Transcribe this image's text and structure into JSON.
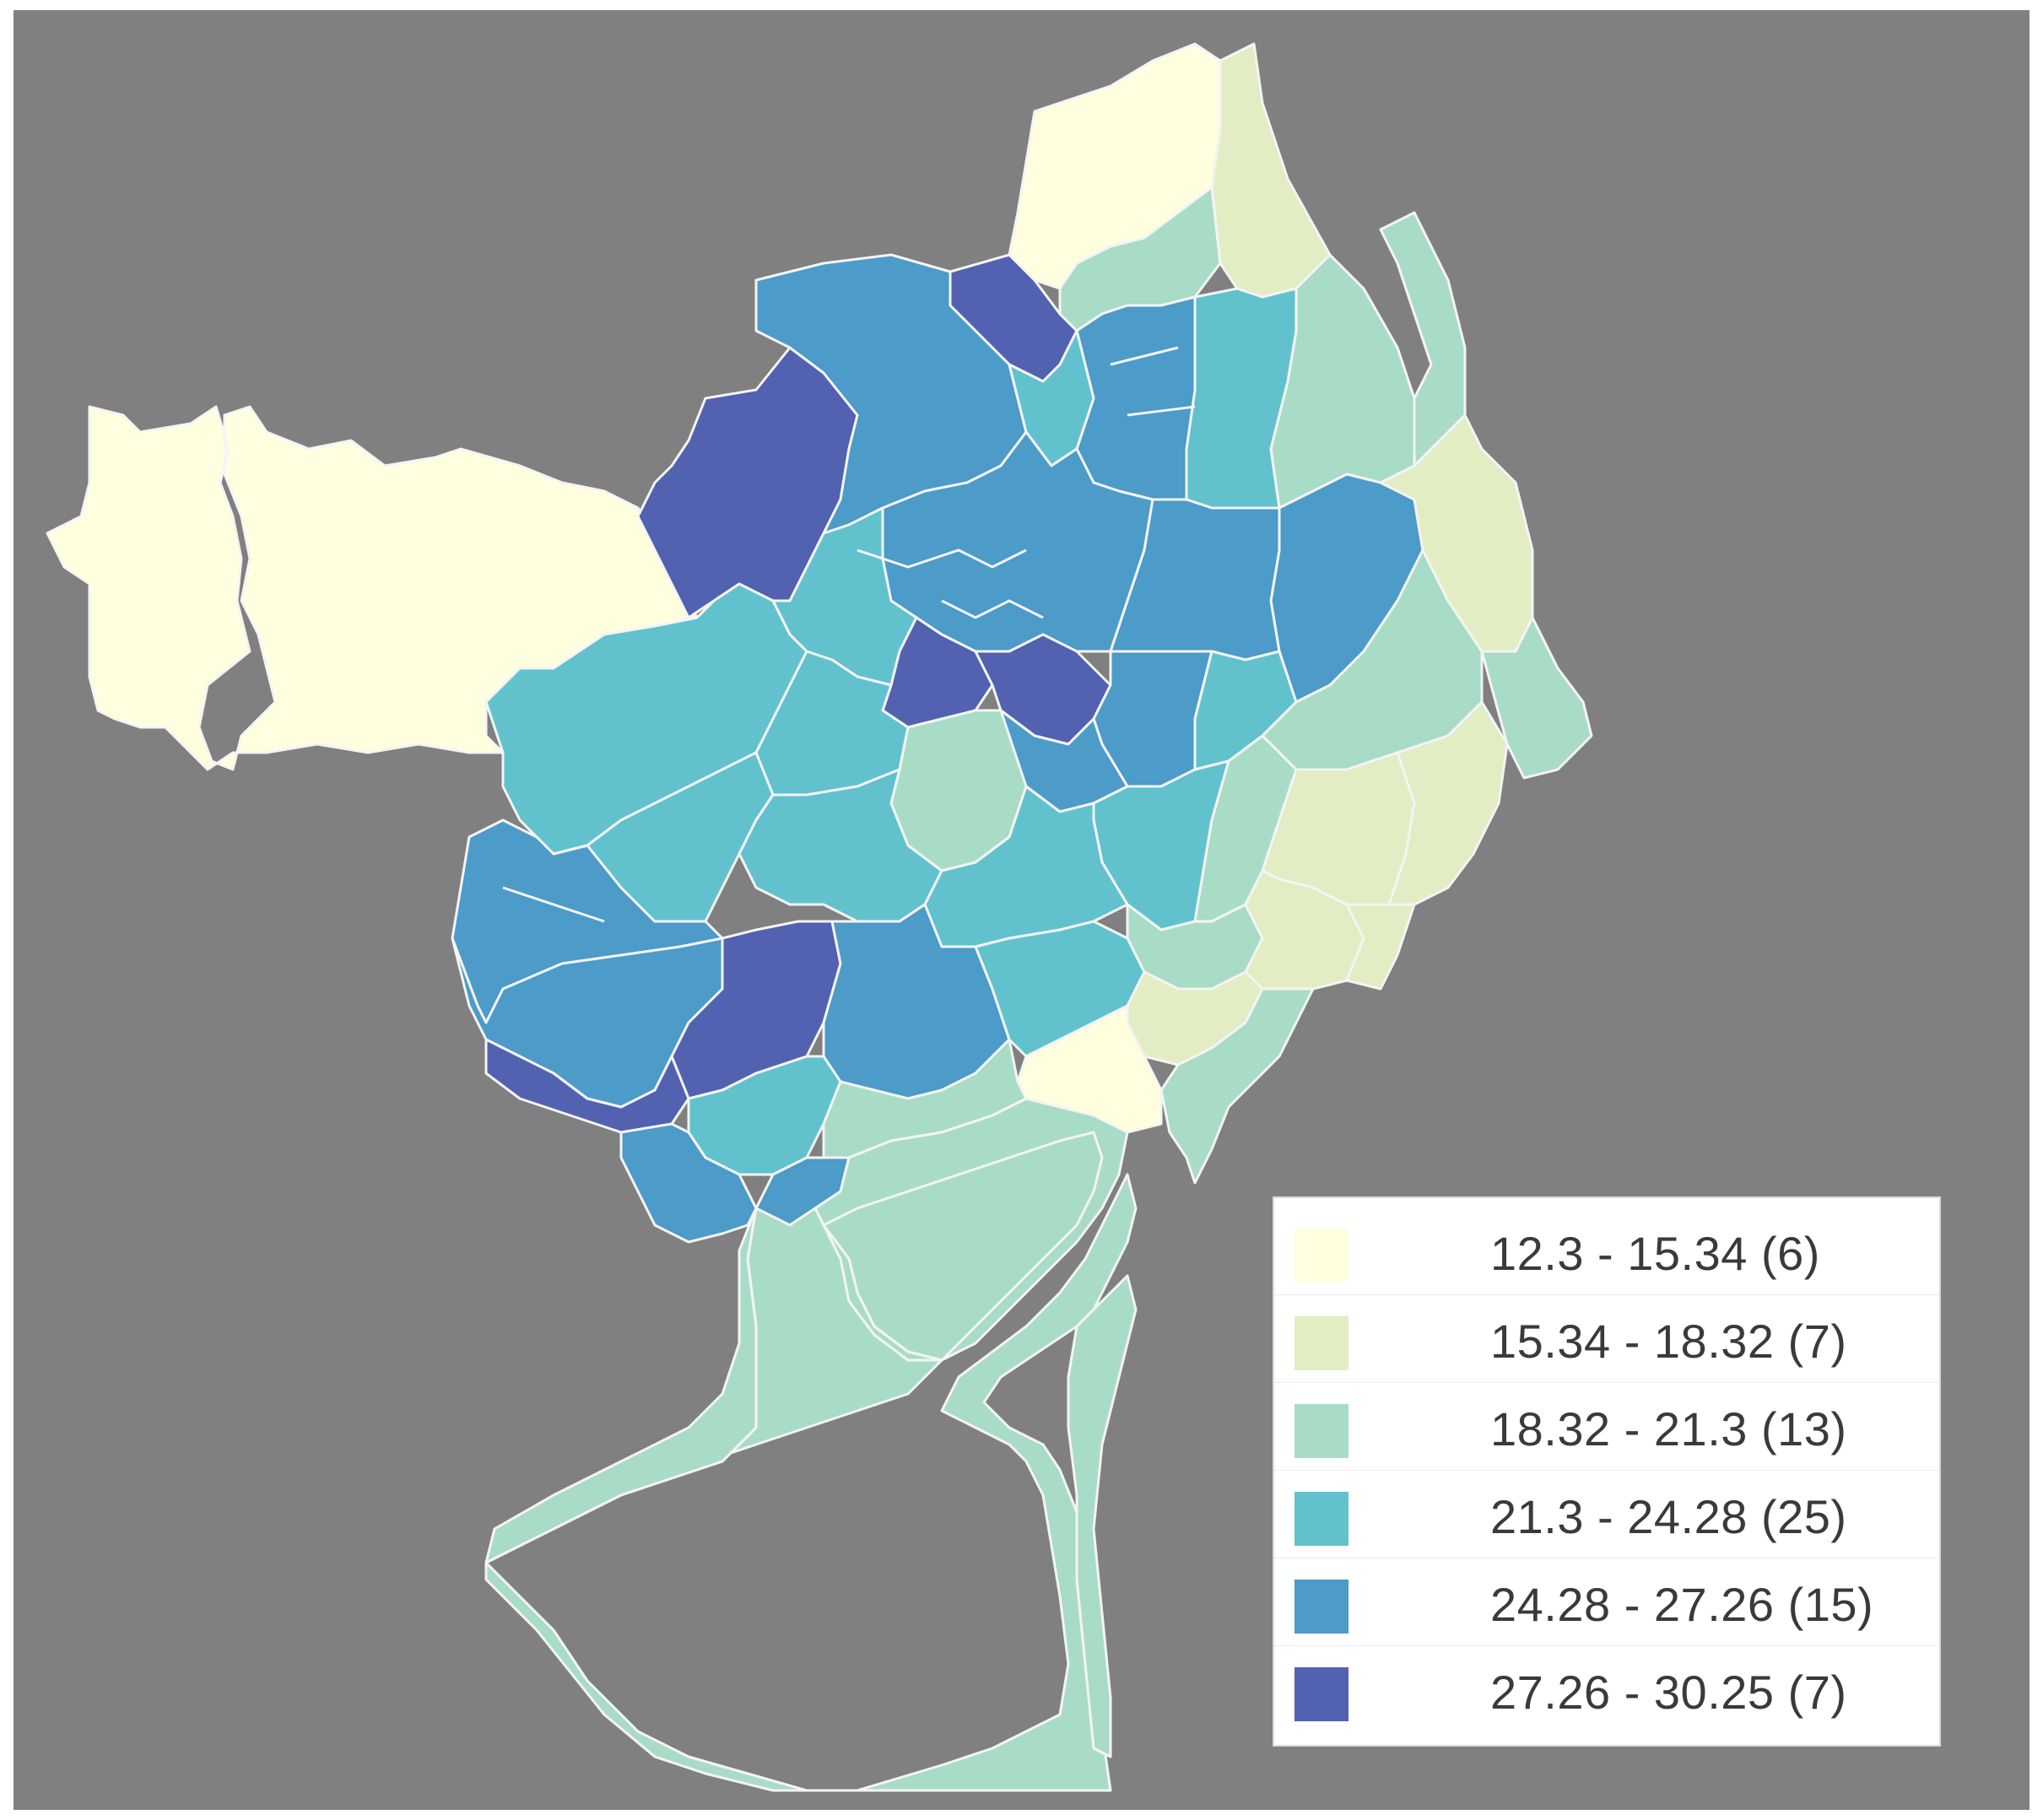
{
  "map": {
    "background_color": "#808080",
    "border_color": "#f4f4f4",
    "classes": [
      {
        "label": "12.3 - 15.34 (6)",
        "color": "#FFFFE0"
      },
      {
        "label": "15.34 - 18.32 (7)",
        "color": "#E2EDC3"
      },
      {
        "label": "18.32 - 21.3 (13)",
        "color": "#A9DCC6"
      },
      {
        "label": "21.3 - 24.28 (25)",
        "color": "#61C2CE"
      },
      {
        "label": "24.28 - 27.26 (15)",
        "color": "#4C9BC9"
      },
      {
        "label": "27.26 - 30.25 (7)",
        "color": "#5262B0"
      }
    ]
  }
}
